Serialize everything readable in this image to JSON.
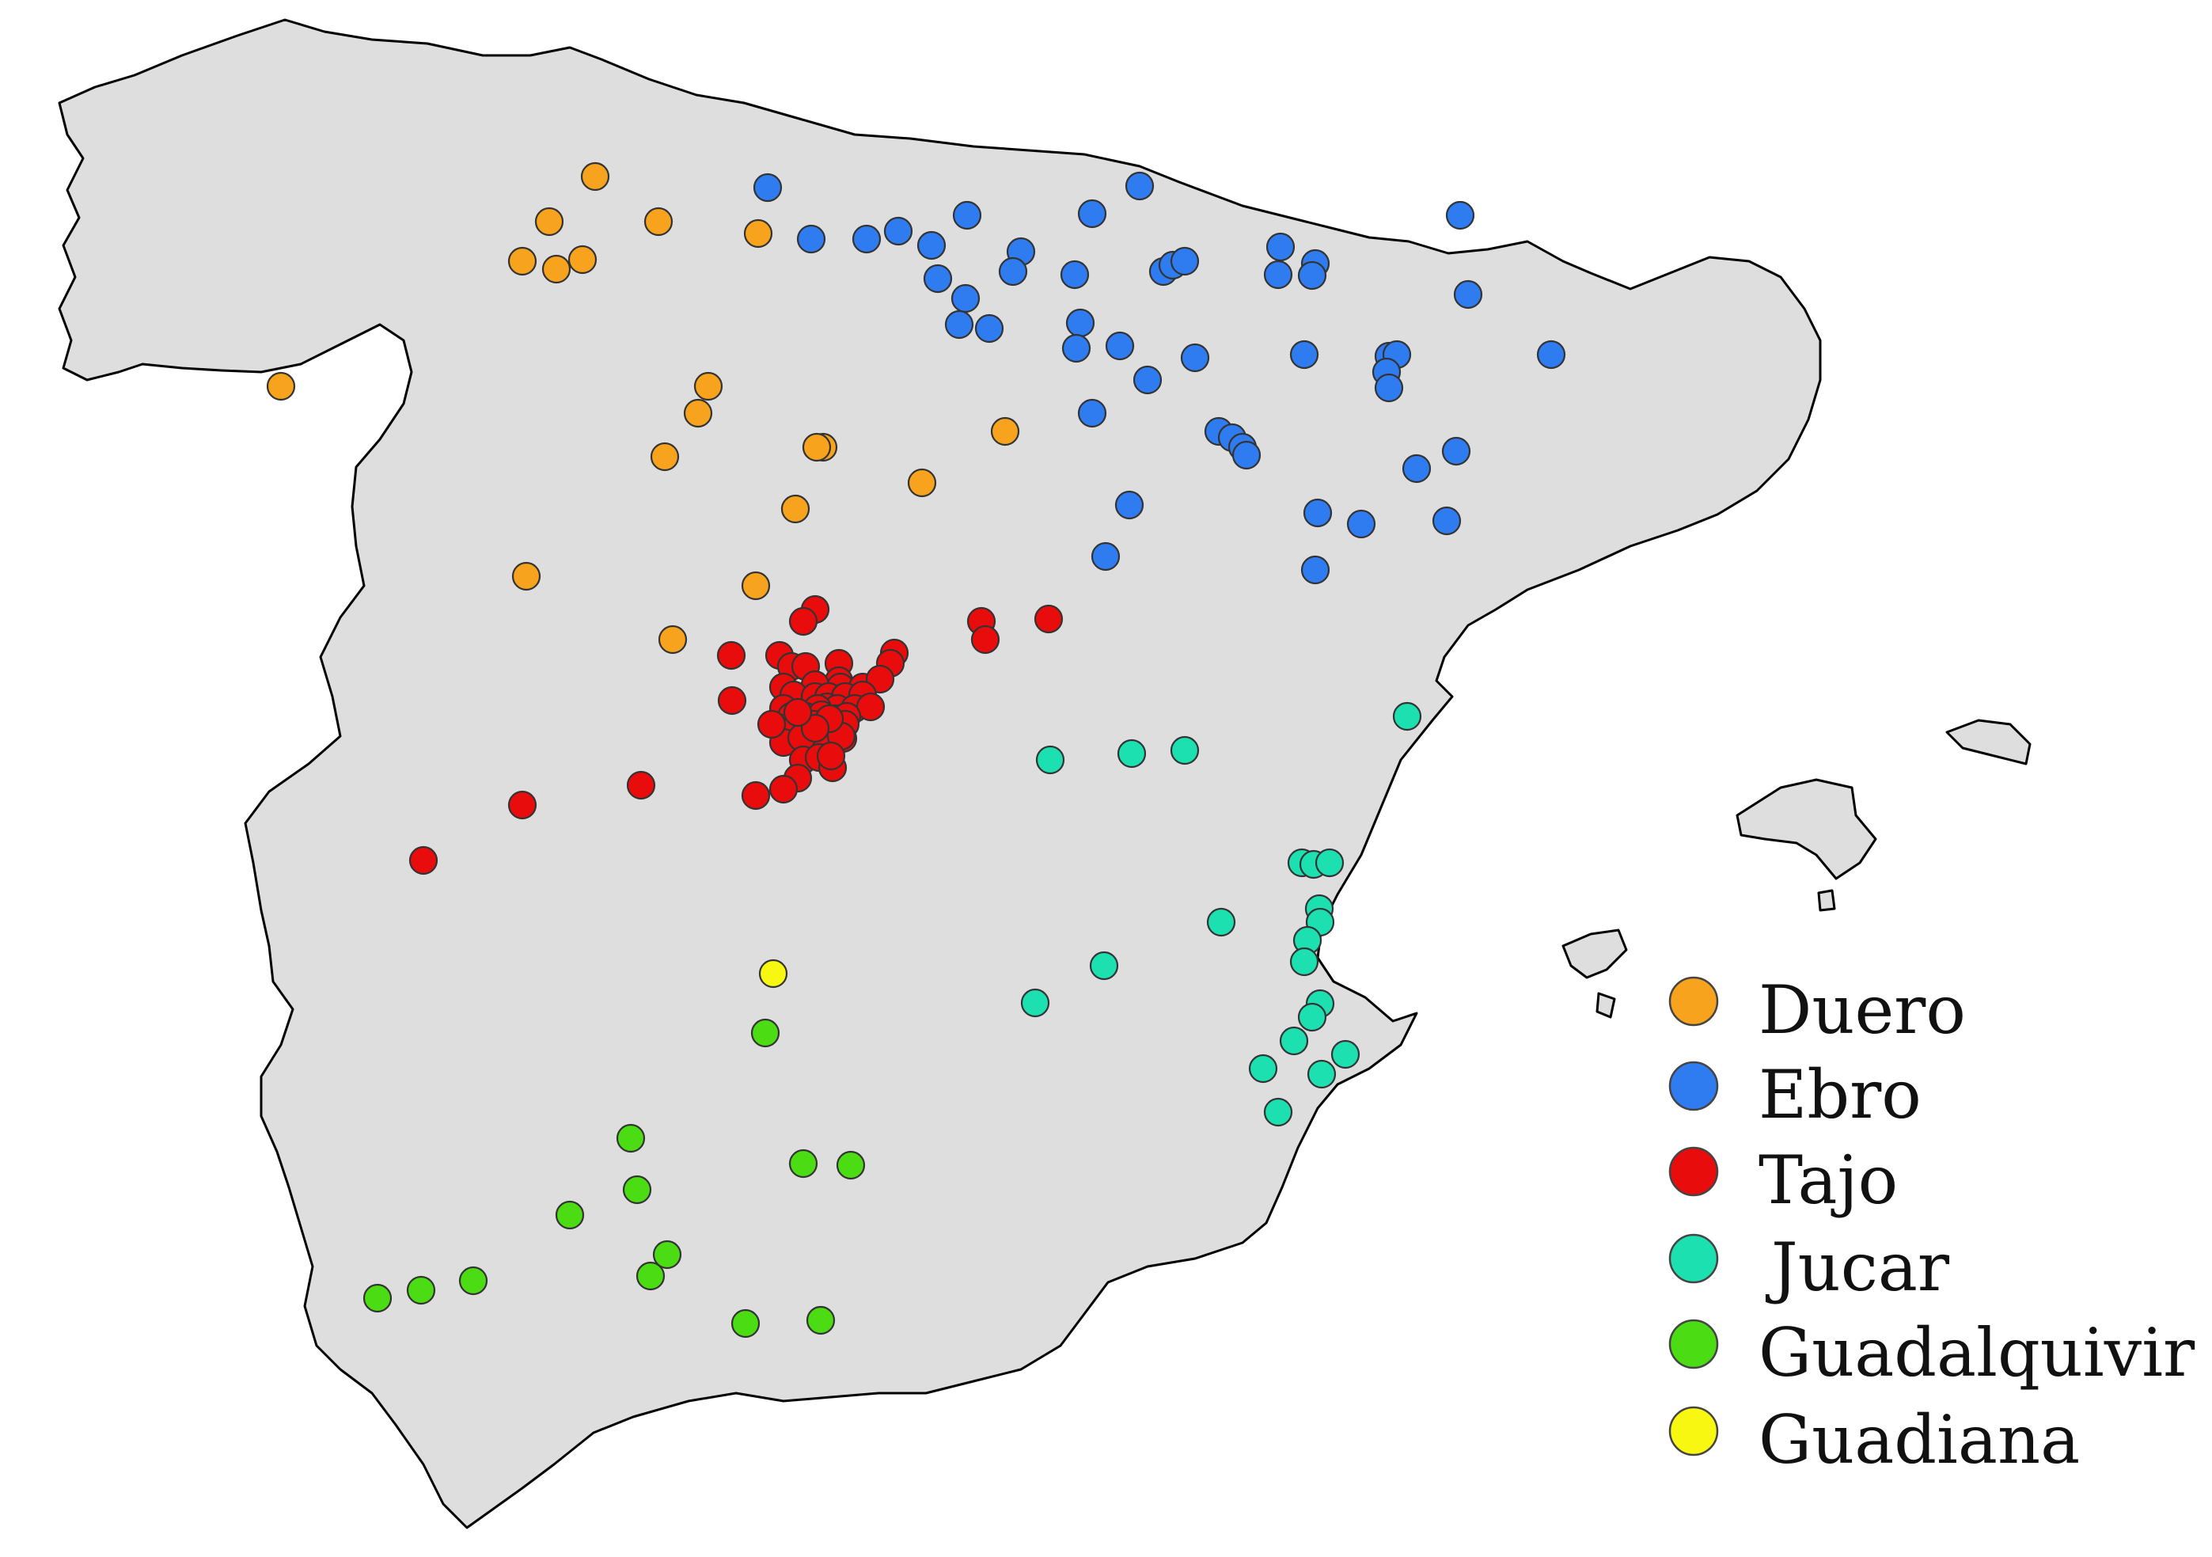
{
  "legend": {
    "items": [
      {
        "key": "duero",
        "label": "Duero",
        "color": "#f7a31d"
      },
      {
        "key": "ebro",
        "label": "Ebro",
        "color": "#2f7bf0"
      },
      {
        "key": "tajo",
        "label": "Tajo",
        "color": "#e80c0c"
      },
      {
        "key": "jucar",
        "label": "Jucar",
        "color": "#1de0b0"
      },
      {
        "key": "guadalquivir",
        "label": "Guadalquivir",
        "color": "#4bdc14"
      },
      {
        "key": "guadiana",
        "label": "Guadiana",
        "color": "#f7f712"
      }
    ]
  }
}
